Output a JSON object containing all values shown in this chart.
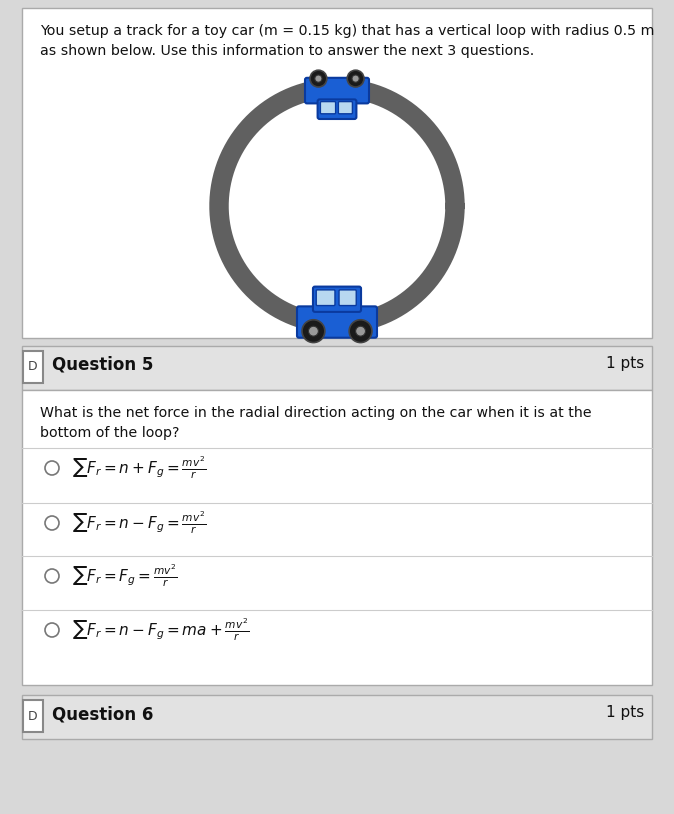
{
  "bg_color": "#d8d8d8",
  "white_bg": "#ffffff",
  "header_bg": "#e2e2e2",
  "intro_text_line1": "You setup a track for a toy car (m = 0.15 kg) that has a vertical loop with radius 0.5 m",
  "intro_text_line2": "as shown below. Use this information to answer the next 3 questions.",
  "q5_header": "Question 5",
  "q5_pts": "1 pts",
  "q5_question_line1": "What is the net force in the radial direction acting on the car when it is at the",
  "q5_question_line2": "bottom of the loop?",
  "q6_header": "Question 6",
  "q6_pts": "1 pts",
  "loop_color": "#606060",
  "loop_lw": 14,
  "car_body_color": "#1a5fd4",
  "car_edge_color": "#0a3a9e",
  "car_window_color": "#b8d8f0",
  "car_wheel_color": "#1a1a1a",
  "car_hub_color": "#999999"
}
